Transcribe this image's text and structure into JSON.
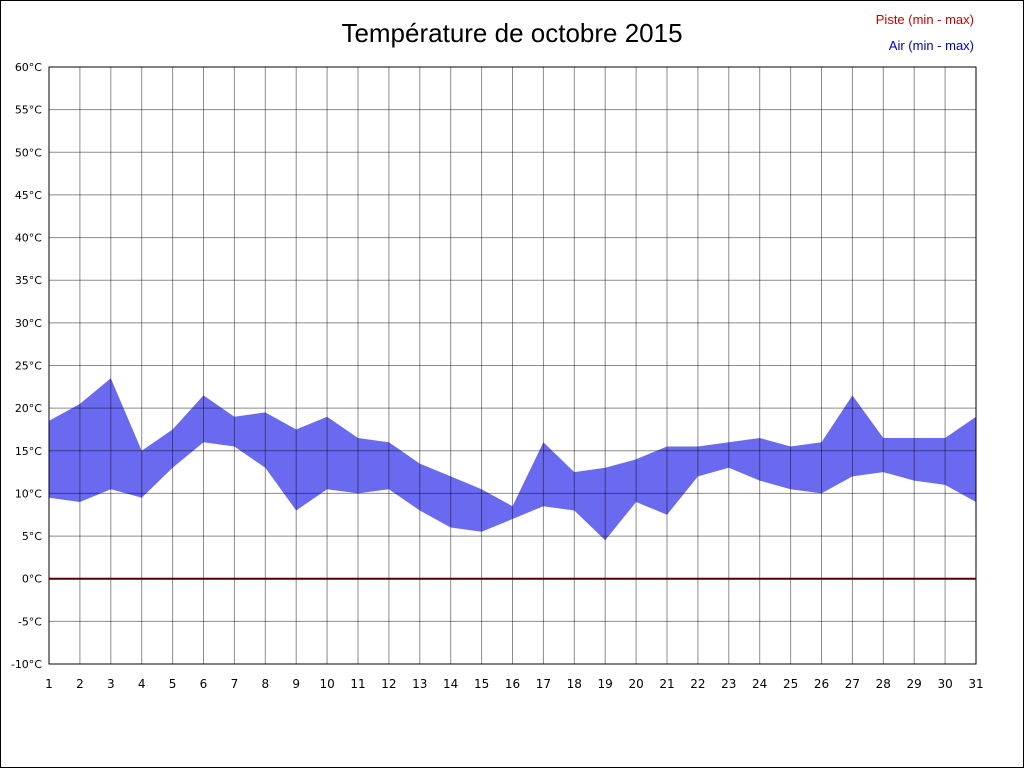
{
  "title": "Température de octobre 2015",
  "legend": {
    "piste": {
      "label": "Piste (min - max)",
      "color": "#cc0000"
    },
    "air": {
      "label": "Air (min - max)",
      "color": "#0000cc"
    }
  },
  "chart_data": {
    "type": "area",
    "subtype": "min-max-range-band",
    "title": "Température de octobre 2015",
    "xlabel": "",
    "ylabel": "",
    "xlim": [
      1,
      31
    ],
    "ylim": [
      -10,
      60
    ],
    "grid": true,
    "grid_color": "rgba(0,0,0,0.45)",
    "legend_position": "top-right",
    "x": [
      1,
      2,
      3,
      4,
      5,
      6,
      7,
      8,
      9,
      10,
      11,
      12,
      13,
      14,
      15,
      16,
      17,
      18,
      19,
      20,
      21,
      22,
      23,
      24,
      25,
      26,
      27,
      28,
      29,
      30,
      31
    ],
    "x_tick_labels": [
      "1",
      "2",
      "3",
      "4",
      "5",
      "6",
      "7",
      "8",
      "9",
      "10",
      "11",
      "12",
      "13",
      "14",
      "15",
      "16",
      "17",
      "18",
      "19",
      "20",
      "21",
      "22",
      "23",
      "24",
      "25",
      "26",
      "27",
      "28",
      "29",
      "30",
      "31"
    ],
    "y_ticks": [
      60,
      55,
      50,
      45,
      40,
      35,
      30,
      25,
      20,
      15,
      10,
      5,
      0,
      -5,
      -10
    ],
    "y_tick_labels": [
      "60°C",
      "55°C",
      "50°C",
      "45°C",
      "40°C",
      "35°C",
      "30°C",
      "25°C",
      "20°C",
      "15°C",
      "10°C",
      "5°C",
      "0°C",
      "-5°C",
      "-10°C"
    ],
    "series": [
      {
        "id": "air",
        "name": "Air (min - max)",
        "render": "band",
        "color": "#6a6af0",
        "min": [
          9.5,
          9,
          10.5,
          9.5,
          13,
          16,
          15.5,
          13,
          8,
          10.5,
          10,
          10.5,
          8,
          6,
          5.5,
          7,
          8.5,
          8,
          4.5,
          9,
          7.5,
          12,
          13,
          11.5,
          10.5,
          10,
          12,
          12.5,
          11.5,
          11,
          9
        ],
        "max": [
          18.5,
          20.5,
          23.5,
          15,
          17.5,
          21.5,
          19,
          19.5,
          17.5,
          19,
          16.5,
          16,
          13.5,
          12,
          10.5,
          8.5,
          16,
          12.5,
          13,
          14,
          15.5,
          15.5,
          16,
          16.5,
          15.5,
          16,
          21.5,
          16.5,
          16.5,
          16.5,
          19
        ]
      },
      {
        "id": "piste",
        "name": "Piste (min - max)",
        "render": "line",
        "color": "#500000",
        "min": [
          0,
          0,
          0,
          0,
          0,
          0,
          0,
          0,
          0,
          0,
          0,
          0,
          0,
          0,
          0,
          0,
          0,
          0,
          0,
          0,
          0,
          0,
          0,
          0,
          0,
          0,
          0,
          0,
          0,
          0,
          0
        ],
        "max": [
          0,
          0,
          0,
          0,
          0,
          0,
          0,
          0,
          0,
          0,
          0,
          0,
          0,
          0,
          0,
          0,
          0,
          0,
          0,
          0,
          0,
          0,
          0,
          0,
          0,
          0,
          0,
          0,
          0,
          0,
          0
        ]
      }
    ]
  }
}
